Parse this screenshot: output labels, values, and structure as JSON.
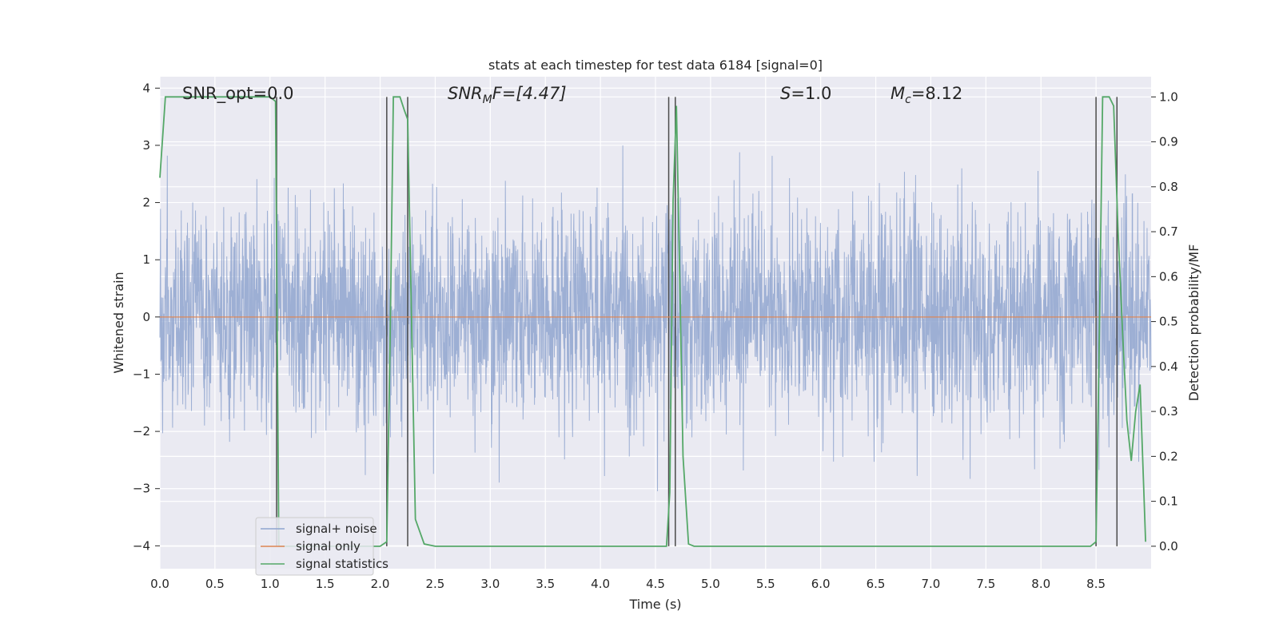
{
  "chart_data": {
    "type": "line",
    "title": "stats at each timestep for test data 6184 [signal=0]",
    "xlabel": "Time (s)",
    "ylabel": "Whitened strain",
    "y2label": "Detection probability/MF",
    "xlim": [
      0.0,
      9.0
    ],
    "ylim": [
      -4.4,
      4.2
    ],
    "y2lim": [
      -0.05,
      1.045
    ],
    "xticks": [
      "0.0",
      "0.5",
      "1.0",
      "1.5",
      "2.0",
      "2.5",
      "3.0",
      "3.5",
      "4.0",
      "4.5",
      "5.0",
      "5.5",
      "6.0",
      "6.5",
      "7.0",
      "7.5",
      "8.0",
      "8.5"
    ],
    "yticks": [
      "4",
      "3",
      "2",
      "1",
      "0",
      "−1",
      "−2",
      "−3",
      "−4"
    ],
    "y2ticks": [
      "1.0",
      "0.9",
      "0.8",
      "0.7",
      "0.6",
      "0.5",
      "0.4",
      "0.3",
      "0.2",
      "0.1",
      "0.0"
    ],
    "grid": true,
    "legend_position": "lower-left",
    "annotations": {
      "snr_opt": "SNR_opt=0.0",
      "snr_mf_main": "SNR",
      "snr_mf_sub": "M",
      "snr_mf_rest": "F=[4.47]",
      "s_main": "S",
      "s_rest": "=1.0",
      "mc_main": "M",
      "mc_sub": "c",
      "mc_rest": "=8.12"
    },
    "series": [
      {
        "name": "signal+ noise",
        "color": "#8fa5cf",
        "description_values": "whitened noise time series, roughly Gaussian with std ~1, extremes near +3.8 and -3.9",
        "y_range": [
          -3.9,
          3.8
        ]
      },
      {
        "name": "signal only",
        "color": "#dd8452",
        "x": [
          0.0,
          9.0
        ],
        "y": [
          0.0,
          0.0
        ]
      },
      {
        "name": "signal statistics",
        "color": "#55a868",
        "x": [
          0.0,
          0.05,
          0.12,
          0.2,
          0.3,
          0.5,
          0.7,
          0.9,
          1.0,
          1.05,
          1.08,
          1.12,
          1.18,
          1.25,
          1.35,
          1.5,
          1.7,
          1.9,
          2.0,
          2.06,
          2.09,
          2.12,
          2.18,
          2.22,
          2.25,
          2.32,
          2.4,
          2.5,
          2.7,
          3.0,
          3.5,
          4.0,
          4.3,
          4.6,
          4.63,
          4.66,
          4.69,
          4.72,
          4.75,
          4.8,
          4.85,
          5.0,
          6.0,
          7.0,
          8.0,
          8.45,
          8.5,
          8.53,
          8.56,
          8.62,
          8.66,
          8.7,
          8.74,
          8.78,
          8.82,
          8.86,
          8.9,
          8.95
        ],
        "y": [
          0.82,
          1.0,
          1.0,
          1.0,
          1.0,
          1.0,
          1.0,
          1.0,
          1.0,
          0.99,
          0.0,
          0.0,
          0.0,
          0.0,
          0.0,
          0.0,
          0.0,
          0.0,
          0.0,
          0.01,
          0.45,
          1.0,
          1.0,
          0.97,
          0.95,
          0.06,
          0.005,
          0.0,
          0.0,
          0.0,
          0.0,
          0.0,
          0.0,
          0.0,
          0.12,
          0.77,
          0.98,
          0.6,
          0.2,
          0.005,
          0.0,
          0.0,
          0.0,
          0.0,
          0.0,
          0.0,
          0.01,
          0.47,
          1.0,
          1.0,
          0.98,
          0.7,
          0.48,
          0.28,
          0.19,
          0.3,
          0.36,
          0.01
        ]
      }
    ],
    "vertical_lines": [
      1.06,
      2.06,
      2.25,
      4.62,
      4.68,
      8.5,
      8.69
    ]
  }
}
